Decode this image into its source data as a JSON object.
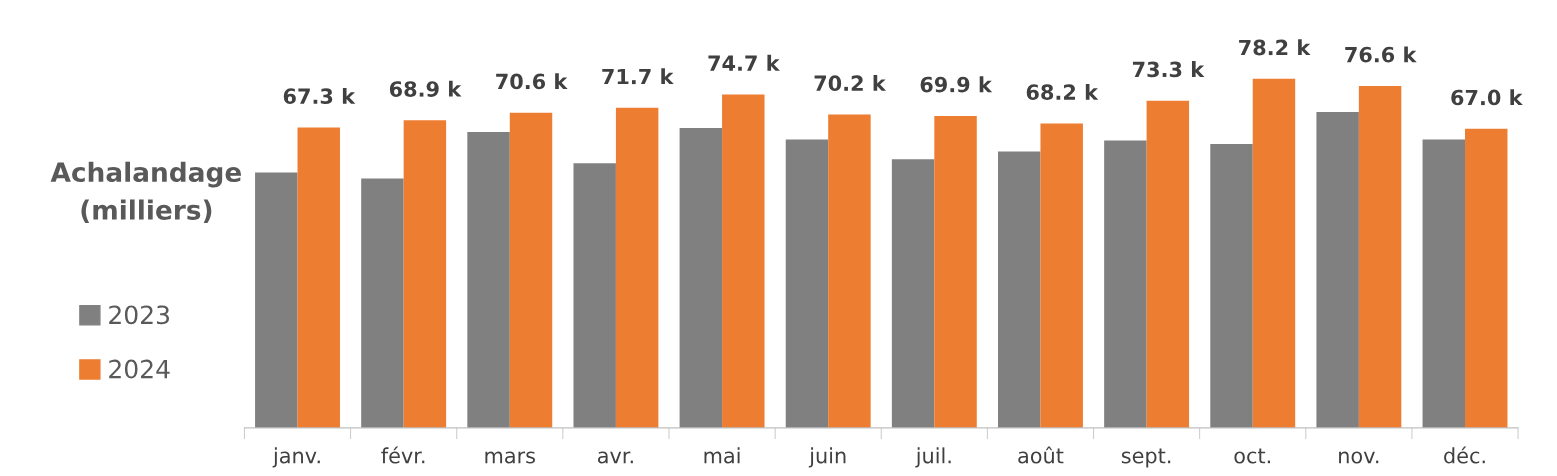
{
  "chart_data": {
    "type": "bar",
    "ylabel": "Achalandage\n(milliers)",
    "categories": [
      "janv.",
      "févr.",
      "mars",
      "avr.",
      "mai",
      "juin",
      "juil.",
      "août",
      "sept.",
      "oct.",
      "nov.",
      "déc."
    ],
    "series": [
      {
        "name": "2023",
        "color": "#808080",
        "values": [
          57.2,
          55.9,
          66.3,
          59.3,
          67.2,
          64.6,
          60.2,
          61.9,
          64.4,
          63.6,
          70.8,
          64.6
        ]
      },
      {
        "name": "2024",
        "color": "#ed7d31",
        "values": [
          67.3,
          68.9,
          70.6,
          71.7,
          74.7,
          70.2,
          69.9,
          68.2,
          73.3,
          78.2,
          76.6,
          67.0
        ],
        "value_labels": [
          "67.3 k",
          "68.9 k",
          "70.6 k",
          "71.7 k",
          "74.7 k",
          "70.2 k",
          "69.9 k",
          "68.2 k",
          "73.3 k",
          "78.2 k",
          "76.6 k",
          "67.0 k"
        ]
      }
    ],
    "legend": "left",
    "grid": false,
    "tick_labels": "x"
  }
}
